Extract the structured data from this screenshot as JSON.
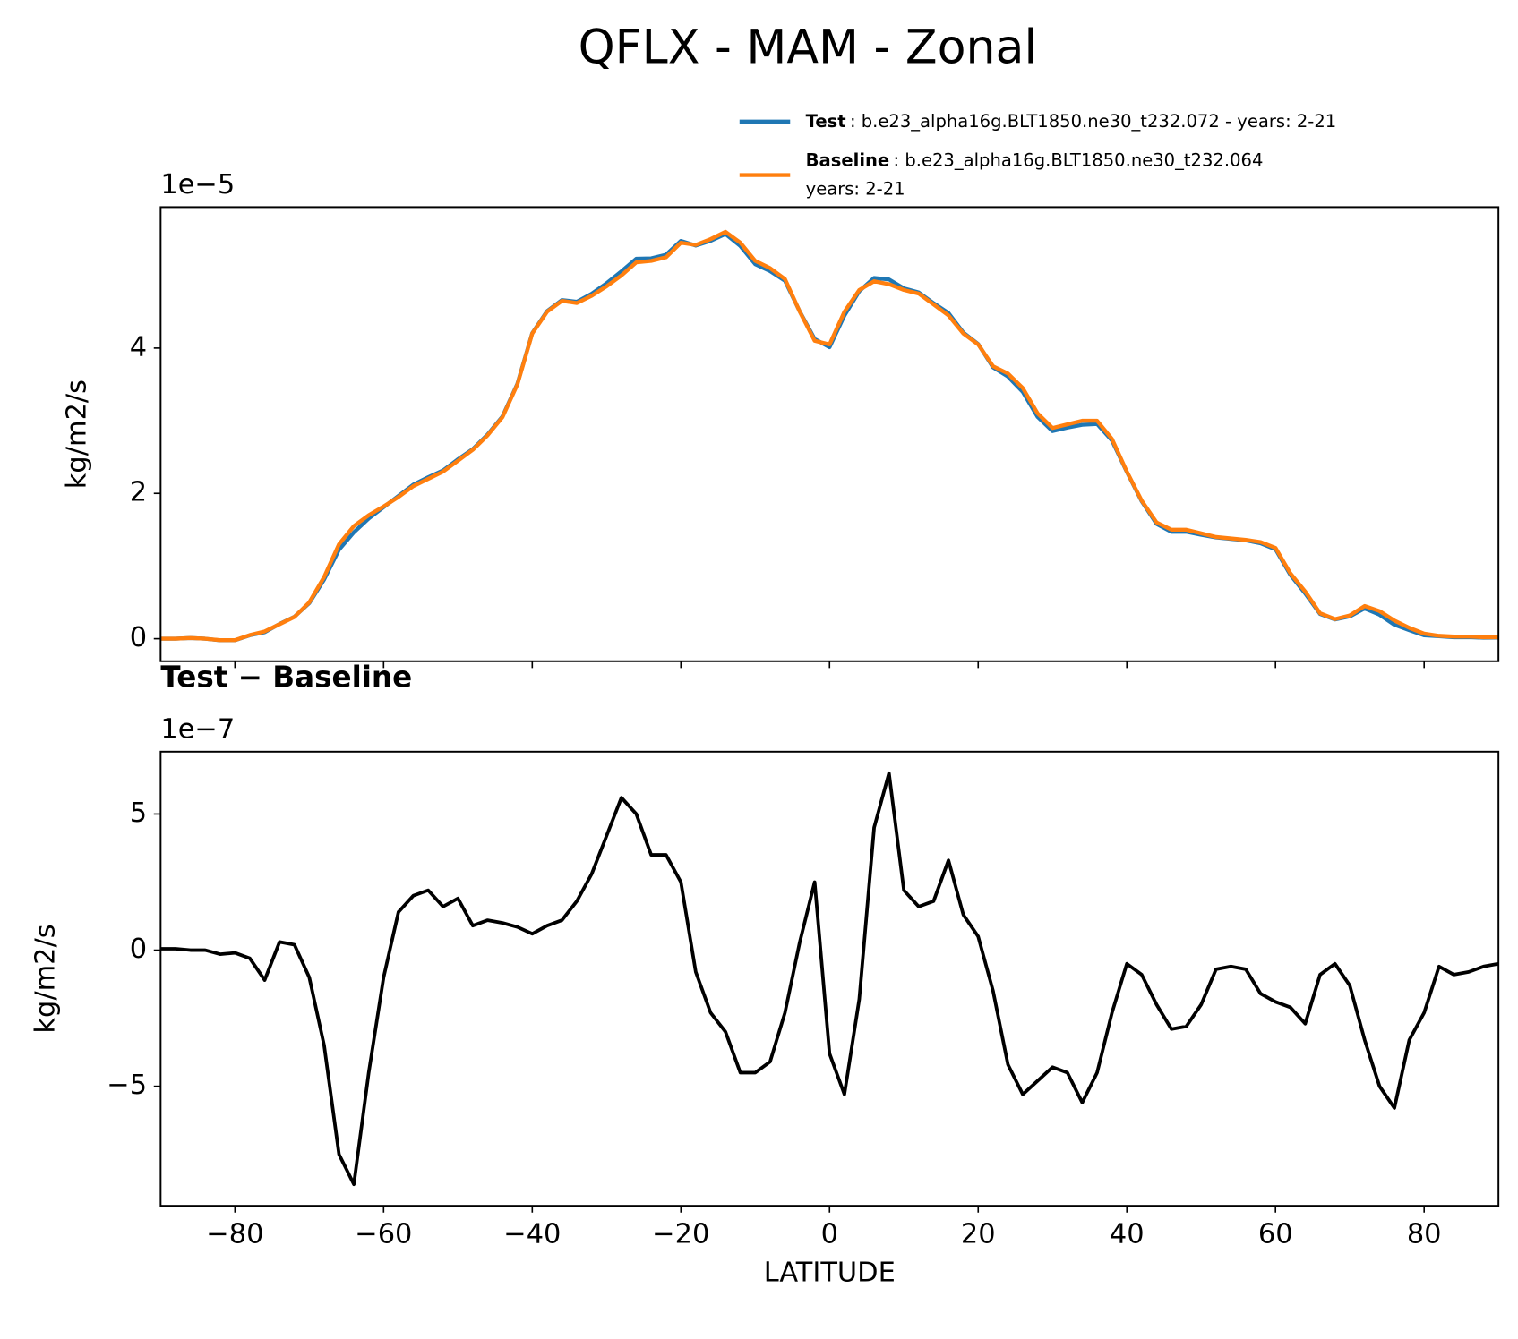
{
  "title": "QFLX - MAM - Zonal",
  "chart_data": [
    {
      "type": "line",
      "ylabel": "kg/m2/s",
      "offset_text": "1e−5",
      "x": [
        -90,
        -88,
        -86,
        -84,
        -82,
        -80,
        -78,
        -76,
        -74,
        -72,
        -70,
        -68,
        -66,
        -64,
        -62,
        -60,
        -58,
        -56,
        -54,
        -52,
        -50,
        -48,
        -46,
        -44,
        -42,
        -40,
        -38,
        -36,
        -34,
        -32,
        -30,
        -28,
        -26,
        -24,
        -22,
        -20,
        -18,
        -16,
        -14,
        -12,
        -10,
        -8,
        -6,
        -4,
        -2,
        0,
        2,
        4,
        6,
        8,
        10,
        12,
        14,
        16,
        18,
        20,
        22,
        24,
        26,
        28,
        30,
        32,
        34,
        36,
        38,
        40,
        42,
        44,
        46,
        48,
        50,
        52,
        54,
        56,
        58,
        60,
        62,
        64,
        66,
        68,
        70,
        72,
        74,
        76,
        78,
        80,
        82,
        84,
        86,
        88,
        90
      ],
      "series": [
        {
          "name": "Test",
          "detail": [
            ": b.e23_alpha16g.BLT1850.ne30_t232.072 - years: 2-21"
          ],
          "color": "#1f77b4",
          "values": [
            0.001,
            0.001,
            0.01,
            0.0,
            -0.022,
            -0.021,
            0.047,
            0.089,
            0.203,
            0.302,
            0.49,
            0.815,
            1.225,
            1.464,
            1.655,
            1.81,
            1.964,
            2.12,
            2.222,
            2.316,
            2.469,
            2.609,
            2.811,
            3.06,
            3.509,
            4.206,
            4.509,
            4.661,
            4.638,
            4.748,
            4.892,
            5.056,
            5.23,
            5.235,
            5.285,
            5.475,
            5.412,
            5.477,
            5.57,
            5.405,
            5.155,
            5.059,
            4.927,
            4.503,
            4.125,
            4.012,
            4.447,
            4.782,
            4.965,
            4.945,
            4.822,
            4.766,
            4.618,
            4.483,
            4.213,
            4.055,
            3.735,
            3.608,
            3.397,
            3.052,
            2.857,
            2.905,
            2.944,
            2.955,
            2.727,
            2.295,
            1.891,
            1.58,
            1.471,
            1.472,
            1.43,
            1.393,
            1.374,
            1.353,
            1.314,
            1.231,
            0.879,
            0.623,
            0.341,
            0.265,
            0.307,
            0.417,
            0.33,
            0.192,
            0.117,
            0.047,
            0.034,
            0.021,
            0.022,
            0.014,
            0.015
          ]
        },
        {
          "name": "Baseline",
          "detail": [
            ": b.e23_alpha16g.BLT1850.ne30_t232.064",
            "years: 2-21"
          ],
          "color": "#ff7f0e",
          "values": [
            0.0,
            0.0,
            0.01,
            0.0,
            -0.02,
            -0.02,
            0.05,
            0.1,
            0.2,
            0.3,
            0.5,
            0.85,
            1.3,
            1.55,
            1.7,
            1.82,
            1.95,
            2.1,
            2.2,
            2.3,
            2.45,
            2.6,
            2.8,
            3.05,
            3.5,
            4.2,
            4.5,
            4.65,
            4.62,
            4.72,
            4.85,
            5.0,
            5.18,
            5.2,
            5.25,
            5.45,
            5.42,
            5.5,
            5.6,
            5.45,
            5.2,
            5.1,
            4.95,
            4.5,
            4.1,
            4.05,
            4.5,
            4.8,
            4.92,
            4.88,
            4.8,
            4.75,
            4.6,
            4.45,
            4.2,
            4.05,
            3.75,
            3.65,
            3.45,
            3.1,
            2.9,
            2.95,
            3.0,
            3.0,
            2.75,
            2.3,
            1.9,
            1.6,
            1.5,
            1.5,
            1.45,
            1.4,
            1.38,
            1.36,
            1.33,
            1.25,
            0.9,
            0.65,
            0.35,
            0.27,
            0.32,
            0.45,
            0.38,
            0.25,
            0.15,
            0.07,
            0.04,
            0.03,
            0.03,
            0.02,
            0.02
          ]
        }
      ],
      "xlim": [
        -90,
        90
      ],
      "xticks": [
        -80,
        -60,
        -40,
        -20,
        0,
        20,
        40,
        60,
        80
      ],
      "ylim": [
        -0.31,
        5.94
      ],
      "yticks": [
        0,
        2,
        4
      ]
    },
    {
      "type": "line",
      "title": "Test − Baseline",
      "ylabel": "kg/m2/s",
      "offset_text": "1e−7",
      "xlabel": "LATITUDE",
      "x": [
        -90,
        -88,
        -86,
        -84,
        -82,
        -80,
        -78,
        -76,
        -74,
        -72,
        -70,
        -68,
        -66,
        -64,
        -62,
        -60,
        -58,
        -56,
        -54,
        -52,
        -50,
        -48,
        -46,
        -44,
        -42,
        -40,
        -38,
        -36,
        -34,
        -32,
        -30,
        -28,
        -26,
        -24,
        -22,
        -20,
        -18,
        -16,
        -14,
        -12,
        -10,
        -8,
        -6,
        -4,
        -2,
        0,
        2,
        4,
        6,
        8,
        10,
        12,
        14,
        16,
        18,
        20,
        22,
        24,
        26,
        28,
        30,
        32,
        34,
        36,
        38,
        40,
        42,
        44,
        46,
        48,
        50,
        52,
        54,
        56,
        58,
        60,
        62,
        64,
        66,
        68,
        70,
        72,
        74,
        76,
        78,
        80,
        82,
        84,
        86,
        88,
        90
      ],
      "series": [
        {
          "name": "Test − Baseline",
          "color": "#000000",
          "values": [
            0.05,
            0.05,
            0.0,
            0.0,
            -0.15,
            -0.1,
            -0.3,
            -1.1,
            0.3,
            0.2,
            -1.0,
            -3.5,
            -7.5,
            -8.6,
            -4.5,
            -1.0,
            1.4,
            2.0,
            2.2,
            1.6,
            1.9,
            0.9,
            1.1,
            1.0,
            0.85,
            0.6,
            0.9,
            1.1,
            1.8,
            2.8,
            4.2,
            5.6,
            5.0,
            3.5,
            3.5,
            2.5,
            -0.8,
            -2.3,
            -3.0,
            -4.5,
            -4.5,
            -4.1,
            -2.3,
            0.3,
            2.5,
            -3.8,
            -5.3,
            -1.8,
            4.5,
            6.5,
            2.2,
            1.6,
            1.8,
            3.3,
            1.3,
            0.5,
            -1.5,
            -4.2,
            -5.3,
            -4.8,
            -4.3,
            -4.5,
            -5.6,
            -4.5,
            -2.3,
            -0.5,
            -0.9,
            -2.0,
            -2.9,
            -2.8,
            -2.0,
            -0.7,
            -0.6,
            -0.7,
            -1.6,
            -1.9,
            -2.1,
            -2.7,
            -0.9,
            -0.5,
            -1.3,
            -3.3,
            -5.0,
            -5.8,
            -3.3,
            -2.3,
            -0.6,
            -0.9,
            -0.8,
            -0.6,
            -0.5
          ]
        }
      ],
      "xlim": [
        -90,
        90
      ],
      "xticks": [
        {
          "value": -80,
          "label": "−80"
        },
        {
          "value": -60,
          "label": "−60"
        },
        {
          "value": -40,
          "label": "−40"
        },
        {
          "value": -20,
          "label": "−20"
        },
        0,
        20,
        40,
        60,
        80
      ],
      "ylim": [
        -9.39,
        7.29
      ],
      "yticks": [
        {
          "value": -5,
          "label": "−5"
        },
        0,
        5
      ]
    }
  ]
}
